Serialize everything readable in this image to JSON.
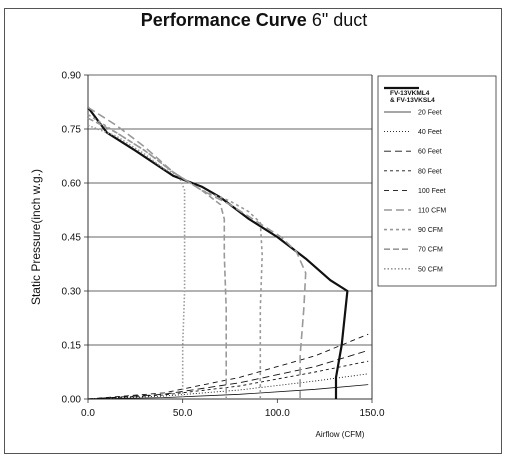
{
  "chart_data": {
    "type": "line",
    "title": "Performance Curve",
    "subtitle": "6\" duct",
    "xlabel": "Airflow (CFM)",
    "ylabel": "Static Pressure(inch w.g.)",
    "xlim": [
      0,
      150
    ],
    "ylim": [
      0,
      0.9
    ],
    "x_ticks": [
      "0.0",
      "50.0",
      "100.0",
      "150.0"
    ],
    "y_ticks": [
      "0.00",
      "0.15",
      "0.30",
      "0.45",
      "0.60",
      "0.75",
      "0.90"
    ],
    "grid": "horizontal",
    "legend_position": "right",
    "series": [
      {
        "name": "FV-13VKML4 & FV-13VKSL4",
        "style": "fan",
        "points": [
          [
            0,
            0.81
          ],
          [
            10,
            0.74
          ],
          [
            25,
            0.69
          ],
          [
            45,
            0.62
          ],
          [
            60,
            0.59
          ],
          [
            70,
            0.56
          ],
          [
            85,
            0.5
          ],
          [
            100,
            0.45
          ],
          [
            115,
            0.39
          ],
          [
            128,
            0.33
          ],
          [
            137,
            0.3
          ],
          [
            134,
            0.15
          ],
          [
            131,
            0.06
          ],
          [
            131,
            0
          ]
        ]
      },
      {
        "name": "20 Feet",
        "style": "solid-thin",
        "points": [
          [
            0,
            0
          ],
          [
            40,
            0.004
          ],
          [
            80,
            0.013
          ],
          [
            120,
            0.027
          ],
          [
            148,
            0.04
          ]
        ]
      },
      {
        "name": "40 Feet",
        "style": "dotted",
        "points": [
          [
            0,
            0
          ],
          [
            40,
            0.008
          ],
          [
            80,
            0.025
          ],
          [
            120,
            0.05
          ],
          [
            148,
            0.07
          ]
        ]
      },
      {
        "name": "60 Feet",
        "style": "dash-long",
        "points": [
          [
            0,
            0
          ],
          [
            40,
            0.013
          ],
          [
            80,
            0.045
          ],
          [
            120,
            0.09
          ],
          [
            148,
            0.135
          ]
        ]
      },
      {
        "name": "80 Feet",
        "style": "dash-short",
        "points": [
          [
            0,
            0
          ],
          [
            40,
            0.011
          ],
          [
            80,
            0.036
          ],
          [
            120,
            0.075
          ],
          [
            148,
            0.105
          ]
        ]
      },
      {
        "name": "100 Feet",
        "style": "dash-med",
        "points": [
          [
            0,
            0
          ],
          [
            40,
            0.017
          ],
          [
            80,
            0.06
          ],
          [
            120,
            0.12
          ],
          [
            148,
            0.18
          ]
        ]
      },
      {
        "name": "110 CFM",
        "style": "gray-long",
        "points": [
          [
            0,
            0.81
          ],
          [
            15,
            0.76
          ],
          [
            30,
            0.7
          ],
          [
            45,
            0.63
          ],
          [
            60,
            0.58
          ],
          [
            75,
            0.54
          ],
          [
            90,
            0.49
          ],
          [
            102,
            0.45
          ],
          [
            110,
            0.41
          ],
          [
            115,
            0.35
          ],
          [
            114,
            0.25
          ],
          [
            112,
            0.12
          ],
          [
            112,
            0
          ]
        ]
      },
      {
        "name": "90 CFM",
        "style": "gray-short",
        "points": [
          [
            0,
            0.79
          ],
          [
            15,
            0.74
          ],
          [
            30,
            0.69
          ],
          [
            45,
            0.63
          ],
          [
            60,
            0.58
          ],
          [
            75,
            0.55
          ],
          [
            85,
            0.52
          ],
          [
            91,
            0.49
          ],
          [
            92,
            0.4
          ],
          [
            91,
            0.25
          ],
          [
            91,
            0.1
          ],
          [
            91,
            0
          ]
        ]
      },
      {
        "name": "70 CFM",
        "style": "gray-med",
        "points": [
          [
            0,
            0.78
          ],
          [
            15,
            0.74
          ],
          [
            30,
            0.69
          ],
          [
            45,
            0.63
          ],
          [
            60,
            0.58
          ],
          [
            70,
            0.54
          ],
          [
            72,
            0.5
          ],
          [
            72,
            0.4
          ],
          [
            73,
            0.25
          ],
          [
            73,
            0.1
          ],
          [
            73,
            0
          ]
        ]
      },
      {
        "name": "50 CFM",
        "style": "gray-dot",
        "points": [
          [
            0,
            0.76
          ],
          [
            15,
            0.73
          ],
          [
            30,
            0.68
          ],
          [
            40,
            0.64
          ],
          [
            48,
            0.62
          ],
          [
            51,
            0.58
          ],
          [
            51,
            0.45
          ],
          [
            51,
            0.3
          ],
          [
            50,
            0.15
          ],
          [
            50,
            0.05
          ],
          [
            50,
            0
          ]
        ]
      }
    ]
  }
}
